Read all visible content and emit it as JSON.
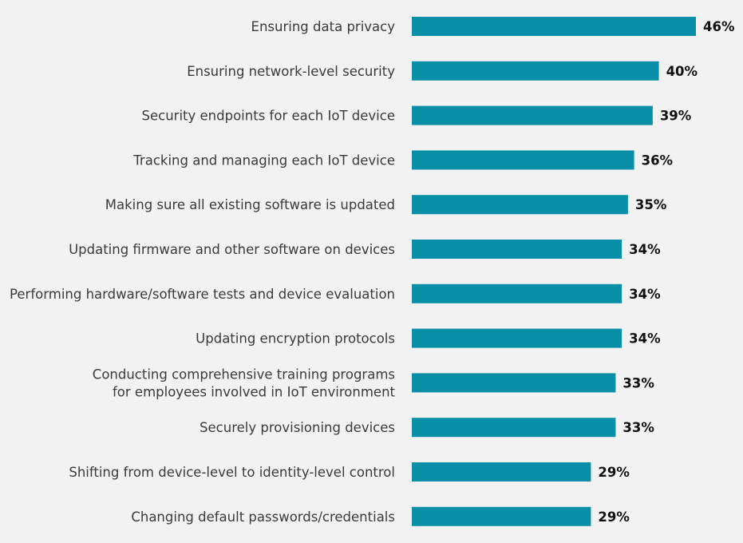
{
  "chart_data": {
    "type": "bar",
    "orientation": "horizontal",
    "categories": [
      [
        "Ensuring data privacy"
      ],
      [
        "Ensuring network-level security"
      ],
      [
        "Security endpoints for each IoT device"
      ],
      [
        "Tracking and managing each IoT device"
      ],
      [
        "Making sure all existing software is updated"
      ],
      [
        "Updating firmware and other software on devices"
      ],
      [
        "Performing hardware/software tests and device evaluation"
      ],
      [
        "Updating encryption protocols"
      ],
      [
        "Conducting comprehensive training programs",
        "for employees involved in IoT environment"
      ],
      [
        "Securely provisioning devices"
      ],
      [
        "Shifting from device-level to identity-level control"
      ],
      [
        "Changing default passwords/credentials"
      ]
    ],
    "values": [
      46,
      40,
      39,
      36,
      35,
      34,
      34,
      34,
      33,
      33,
      29,
      29
    ],
    "value_labels": [
      "46%",
      "40%",
      "39%",
      "36%",
      "35%",
      "34%",
      "34%",
      "34%",
      "33%",
      "33%",
      "29%",
      "29%"
    ],
    "unit": "%",
    "bar_color": "#0a8fa8",
    "background": "#f2f2f2",
    "grid": false,
    "legend": "none",
    "title": "",
    "xlabel": "",
    "ylabel": ""
  }
}
